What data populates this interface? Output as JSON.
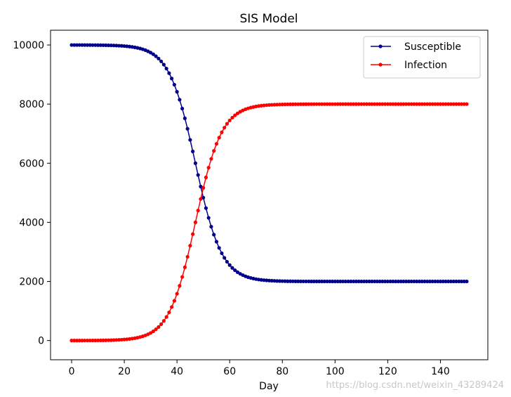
{
  "chart_data": {
    "type": "line",
    "title": "SIS Model",
    "xlabel": "Day",
    "ylabel": "",
    "xlim": [
      -8,
      158
    ],
    "ylim": [
      -650,
      10500
    ],
    "xticks": [
      0,
      20,
      40,
      60,
      80,
      100,
      120,
      140
    ],
    "yticks": [
      0,
      2000,
      4000,
      6000,
      8000,
      10000
    ],
    "x": {
      "start": 0,
      "end": 150,
      "step": 1
    },
    "legend_position": "top-right",
    "series": [
      {
        "name": "Susceptible",
        "color": "#00008b",
        "marker": "dot",
        "model": "logistic",
        "initial": 10000,
        "final": 2000,
        "midpoint_day": 47,
        "rate": 0.2
      },
      {
        "name": "Infection",
        "color": "#ff0000",
        "marker": "dot",
        "model": "logistic",
        "initial": 0,
        "final": 8000,
        "midpoint_day": 47,
        "rate": 0.2
      }
    ]
  },
  "watermark": "https://blog.csdn.net/weixin_43289424"
}
